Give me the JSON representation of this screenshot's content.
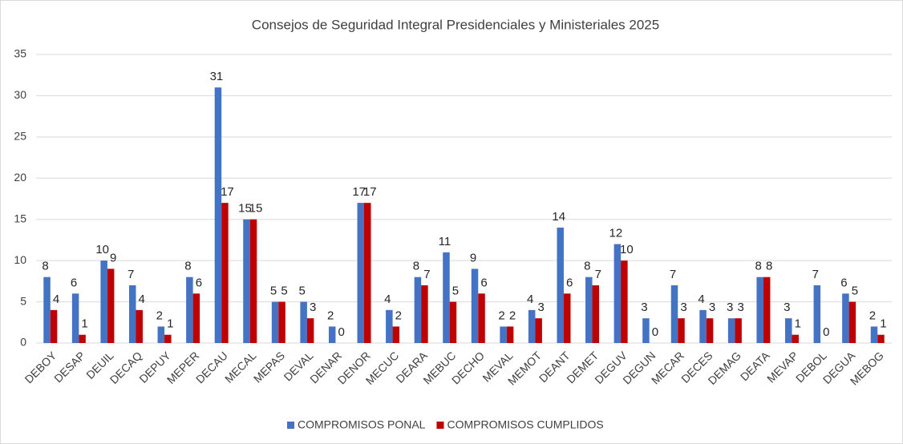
{
  "chart_data": {
    "type": "bar",
    "title": "Consejos de Seguridad Integral Presidenciales y Ministeriales 2025",
    "categories": [
      "DEBOY",
      "DESAP",
      "DEUIL",
      "DECAQ",
      "DEPUY",
      "MEPER",
      "DECAU",
      "MECAL",
      "MEPAS",
      "DEVAL",
      "DENAR",
      "DENOR",
      "MECUC",
      "DEARA",
      "MEBUC",
      "DECHO",
      "MEVAL",
      "MEMOT",
      "DEANT",
      "DEMET",
      "DEGUV",
      "DEGUN",
      "MECAR",
      "DECES",
      "DEMAG",
      "DEATA",
      "MEVAP",
      "DEBOL",
      "DEGUA",
      "MEBOG"
    ],
    "series": [
      {
        "name": "COMPROMISOS PONAL",
        "color": "#4472c4",
        "values": [
          8,
          6,
          10,
          7,
          2,
          8,
          31,
          15,
          5,
          5,
          2,
          17,
          4,
          8,
          11,
          9,
          2,
          4,
          14,
          8,
          12,
          3,
          7,
          4,
          3,
          8,
          3,
          7,
          6,
          2
        ]
      },
      {
        "name": "COMPROMISOS CUMPLIDOS",
        "color": "#c00000",
        "values": [
          4,
          1,
          9,
          4,
          1,
          6,
          17,
          15,
          5,
          3,
          0,
          17,
          2,
          7,
          5,
          6,
          2,
          3,
          6,
          7,
          10,
          0,
          3,
          3,
          3,
          8,
          1,
          0,
          5,
          1
        ]
      }
    ],
    "ylim": [
      0,
      35
    ],
    "yticks": [
      0,
      5,
      10,
      15,
      20,
      25,
      30,
      35
    ],
    "grid": true,
    "legend": "bottom"
  }
}
